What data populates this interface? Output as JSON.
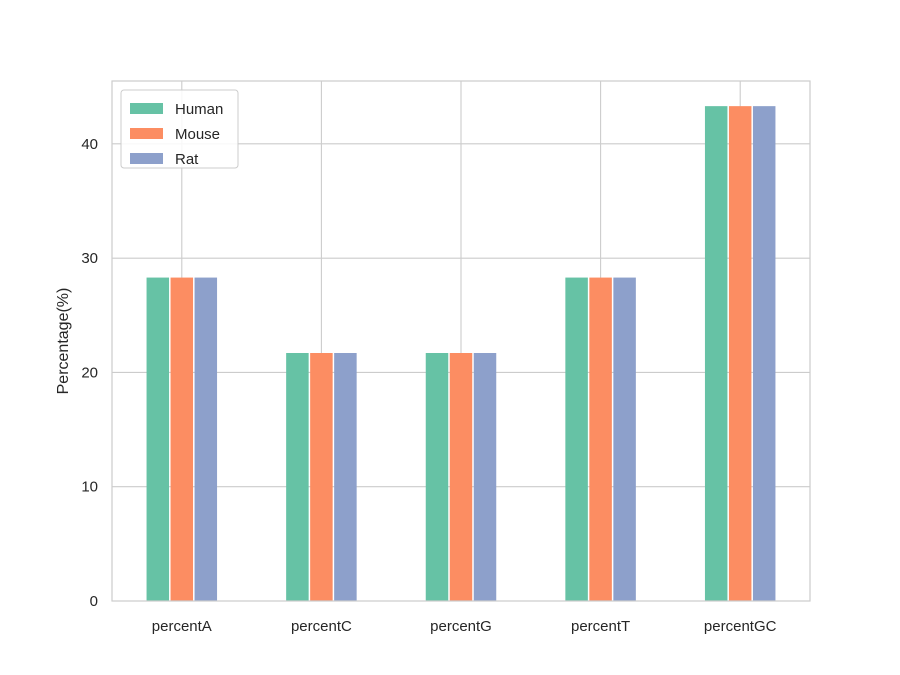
{
  "chart_data": {
    "type": "bar",
    "title": "",
    "xlabel": "",
    "ylabel": "Percentage(%)",
    "categories": [
      "percentA",
      "percentC",
      "percentG",
      "percentT",
      "percentGC"
    ],
    "series": [
      {
        "name": "Human",
        "values": [
          28.3,
          21.7,
          21.7,
          28.3,
          43.3
        ],
        "color": "#66c2a5"
      },
      {
        "name": "Mouse",
        "values": [
          28.3,
          21.7,
          21.7,
          28.3,
          43.3
        ],
        "color": "#fc8d62"
      },
      {
        "name": "Rat",
        "values": [
          28.3,
          21.7,
          21.7,
          28.3,
          43.3
        ],
        "color": "#8da0cb"
      }
    ],
    "ylim": [
      0,
      45.5
    ],
    "yticks": [
      0,
      10,
      20,
      30,
      40
    ],
    "grid": true,
    "legend_position": "top-left"
  }
}
